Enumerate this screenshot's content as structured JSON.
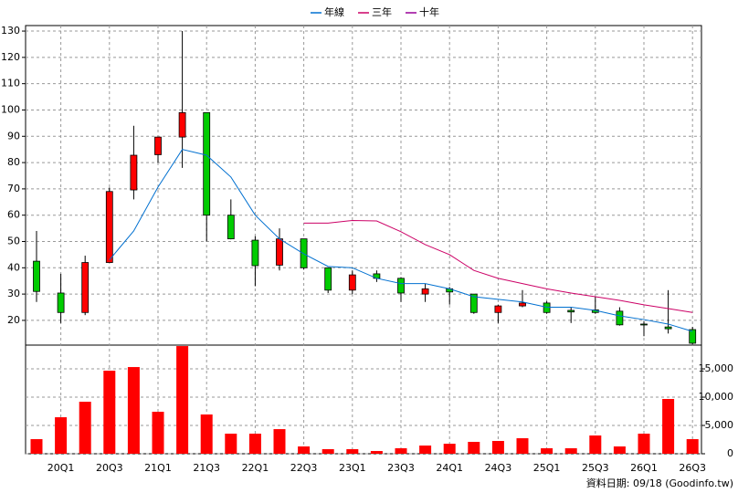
{
  "chart_data": [
    {
      "type": "candlestick",
      "legend": "top",
      "up_color": "#ff0000",
      "down_color": "#00cc00",
      "open": [
        42.5,
        30.4,
        23,
        42,
        69.6,
        83,
        89.7,
        99,
        60,
        50.5,
        41,
        51,
        40,
        31.5,
        37.7,
        36,
        30,
        32,
        30,
        23,
        25.5,
        26.6,
        23.8,
        24,
        23.5,
        18.6,
        17.5,
        16.5
      ],
      "high": [
        54,
        37.7,
        44.6,
        70.5,
        94,
        89.7,
        130,
        99,
        66,
        52,
        55,
        51,
        40,
        39,
        39,
        36.4,
        34,
        32.7,
        30,
        26,
        31.5,
        27.3,
        25,
        29,
        25,
        19.7,
        31.5,
        17.5
      ],
      "low": [
        27,
        19,
        22,
        42,
        66,
        80,
        78,
        50,
        50.8,
        33,
        39,
        39.3,
        30.4,
        30,
        34.6,
        27,
        27,
        26,
        22.5,
        19,
        25,
        22.5,
        19,
        22.5,
        18,
        14,
        15,
        10.8
      ],
      "close": [
        31,
        23,
        42,
        69,
        82.8,
        89.7,
        99,
        60,
        51,
        40.8,
        51,
        40,
        31.5,
        37.3,
        36,
        30.4,
        32,
        30.8,
        23,
        25.5,
        26.6,
        23,
        23.2,
        23,
        18.3,
        18.3,
        16.8,
        11.3
      ],
      "series": [
        {
          "name": "年線",
          "color": "#0070d0",
          "values": [
            null,
            null,
            null,
            43,
            54,
            70.7,
            85,
            82.8,
            74.5,
            60,
            51,
            45.3,
            40.5,
            40,
            36,
            34,
            34,
            32,
            29,
            28,
            27,
            25,
            25,
            23.8,
            21.7,
            20.3,
            18.6,
            15.8
          ]
        },
        {
          "name": "三年",
          "color": "#cc0066",
          "values": [
            null,
            null,
            null,
            null,
            null,
            null,
            null,
            null,
            null,
            null,
            null,
            57,
            57,
            58,
            57.8,
            53.7,
            48.8,
            45,
            39,
            36,
            34,
            32,
            30.4,
            29,
            27.6,
            25.9,
            24.5,
            23
          ]
        },
        {
          "name": "十年",
          "color": "#990099",
          "values": [
            null,
            null,
            null,
            null,
            null,
            null,
            null,
            null,
            null,
            null,
            null,
            null,
            null,
            null,
            null,
            null,
            null,
            null,
            null,
            null,
            null,
            null,
            null,
            null,
            null,
            null,
            null,
            null
          ]
        }
      ],
      "ylim": [
        10.6,
        132.1
      ],
      "yticks": [
        20,
        30,
        40,
        50,
        60,
        70,
        80,
        90,
        100,
        110,
        120,
        130
      ],
      "grid": true
    },
    {
      "type": "bar",
      "color": "#ff0000",
      "categories": [
        null,
        "20Q1",
        null,
        "20Q3",
        null,
        "21Q1",
        null,
        "21Q3",
        null,
        "22Q1",
        null,
        "22Q3",
        null,
        "23Q1",
        null,
        "23Q3",
        null,
        "24Q1",
        null,
        "24Q3",
        null,
        "25Q1",
        null,
        "25Q3",
        null,
        "26Q1",
        null,
        "26Q3"
      ],
      "values": [
        2580,
        6450,
        9190,
        14680,
        15320,
        7420,
        19030,
        6940,
        3550,
        3550,
        4350,
        1290,
        810,
        810,
        480,
        970,
        1450,
        1770,
        2100,
        2260,
        2740,
        970,
        970,
        3230,
        1290,
        3550,
        9680,
        2580
      ],
      "ylim": [
        0,
        19200
      ],
      "yticks": [
        0,
        {
          "value": 5000,
          "label": "5,000"
        },
        {
          "value": 10000,
          "label": "10,000"
        },
        {
          "value": 15000,
          "label": "15,000"
        }
      ],
      "grid": true,
      "footnote": "資料日期: 09/18  (Goodinfo.tw)"
    }
  ]
}
